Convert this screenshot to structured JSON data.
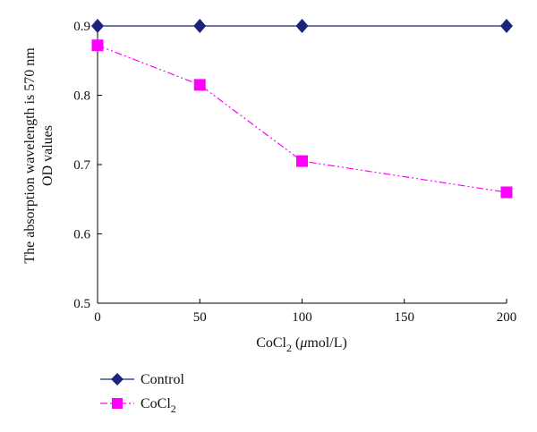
{
  "chart_data": {
    "type": "line",
    "xlabel": {
      "main": "CoCl",
      "sub": "2",
      "rest": " (",
      "mu": "μ",
      "unit": "mol/L)"
    },
    "ylabel": {
      "line1": "The absorption wavelength is 570 nm",
      "line2": "OD values"
    },
    "xlim": [
      0,
      200
    ],
    "ylim": [
      0.5,
      0.9
    ],
    "xticks": [
      0,
      50,
      100,
      150,
      200
    ],
    "yticks": [
      0.5,
      0.6,
      0.7,
      0.8,
      0.9
    ],
    "xtick_labels": [
      "0",
      "50",
      "100",
      "150",
      "200"
    ],
    "ytick_labels": [
      "0.5",
      "0.6",
      "0.7",
      "0.8",
      "0.9"
    ],
    "legend_position": "bottom-left",
    "series": [
      {
        "name": "Control",
        "marker": "diamond",
        "color": "#1a237e",
        "line_style": "solid",
        "points": [
          {
            "x": 0,
            "y": 0.9
          },
          {
            "x": 50,
            "y": 0.9
          },
          {
            "x": 100,
            "y": 0.9
          },
          {
            "x": 200,
            "y": 0.9
          }
        ]
      },
      {
        "name": "CoCl",
        "name_sub": "2",
        "marker": "square",
        "color": "#ff00ff",
        "line_style": "dash-dot-dot",
        "points": [
          {
            "x": 0,
            "y": 0.872
          },
          {
            "x": 50,
            "y": 0.815
          },
          {
            "x": 100,
            "y": 0.705
          },
          {
            "x": 200,
            "y": 0.66
          }
        ]
      }
    ]
  }
}
